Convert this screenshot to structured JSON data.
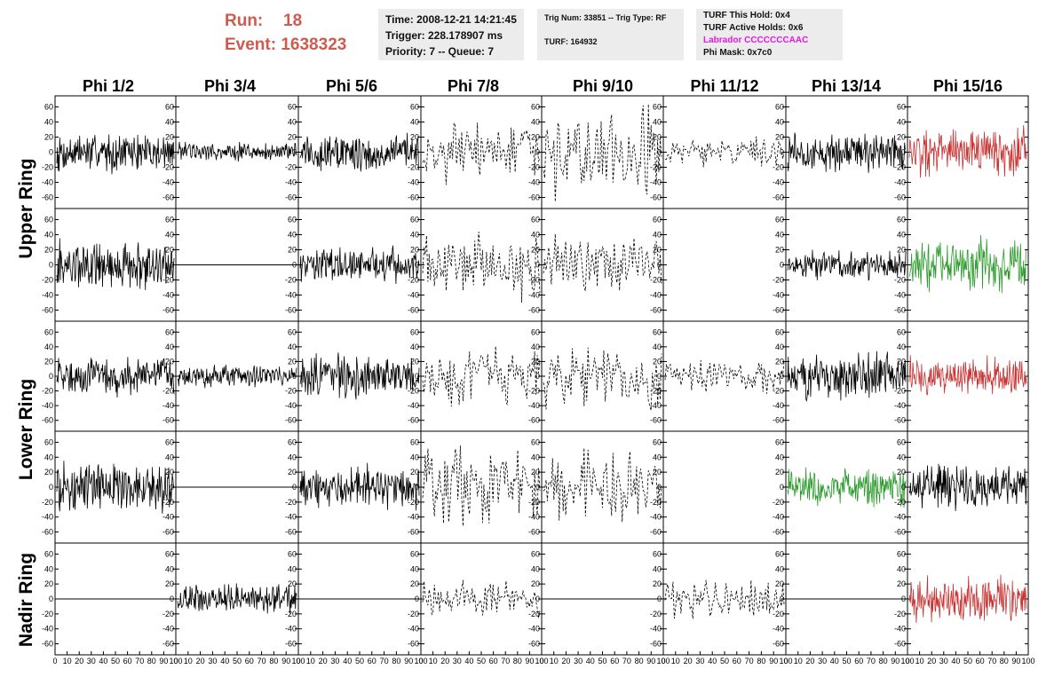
{
  "header": {
    "run_label": "Run:",
    "run_value": "18",
    "event_label": "Event:",
    "event_value": "1638323"
  },
  "time_box": {
    "time": "Time: 2008-12-21 14:21:45",
    "trigger": "Trigger: 228.178907 ms",
    "priority": "Priority: 7 -- Queue: 7"
  },
  "trig_box": {
    "trig": "Trig Num: 33851 -- Trig Type: RF",
    "turf": "TURF: 164932"
  },
  "turf_box": {
    "hold": "TURF This Hold: 0x4",
    "active": "TURF Active Holds: 0x6",
    "labrador": "Labrador CCCCCCCAAC",
    "phimask": "Phi Mask: 0x7c0"
  },
  "colors": {
    "run_text": "#d05a4e",
    "labrador_text": "#e21ae2",
    "trace_black": "#000000",
    "trace_red": "#c83232",
    "trace_green": "#2a9a2a",
    "info_bg": "#ececec"
  },
  "columns": [
    "Phi 1/2",
    "Phi 3/4",
    "Phi 5/6",
    "Phi 7/8",
    "Phi 9/10",
    "Phi 11/12",
    "Phi 13/14",
    "Phi 15/16"
  ],
  "rows": [
    "Upper Ring",
    "Lower Ring",
    "Nadir Ring"
  ],
  "y_ticks": [
    "60",
    "40",
    "20",
    "0",
    "-20",
    "-40",
    "-60"
  ],
  "x_ticks": [
    "0",
    "10",
    "20",
    "30",
    "40",
    "50",
    "60",
    "70",
    "80",
    "90",
    "100"
  ],
  "chart_data": {
    "type": "line",
    "ylim": [
      -70,
      70
    ],
    "xlim": [
      0,
      100
    ],
    "panels": [
      [
        "black",
        "black",
        "black",
        "dashed",
        "dashed",
        "dashed",
        "black",
        "red"
      ],
      [
        "black",
        "flat",
        "black",
        "dashed",
        "dashed",
        "empty",
        "black",
        "green"
      ],
      [
        "black",
        "black",
        "black",
        "dashed",
        "dashed",
        "dashed",
        "black",
        "red"
      ],
      [
        "black",
        "flat",
        "black",
        "dashed",
        "dashed",
        "empty",
        "green",
        "black"
      ],
      [
        "flat",
        "black",
        "flat",
        "dashed",
        "flat",
        "dashed",
        "flat",
        "red"
      ]
    ],
    "amplitude": [
      [
        20,
        10,
        20,
        30,
        45,
        15,
        20,
        25
      ],
      [
        25,
        0,
        18,
        35,
        30,
        0,
        15,
        28
      ],
      [
        20,
        12,
        22,
        30,
        35,
        18,
        25,
        20
      ],
      [
        25,
        0,
        22,
        40,
        40,
        0,
        20,
        22
      ],
      [
        0,
        15,
        0,
        20,
        0,
        20,
        0,
        25
      ]
    ]
  }
}
